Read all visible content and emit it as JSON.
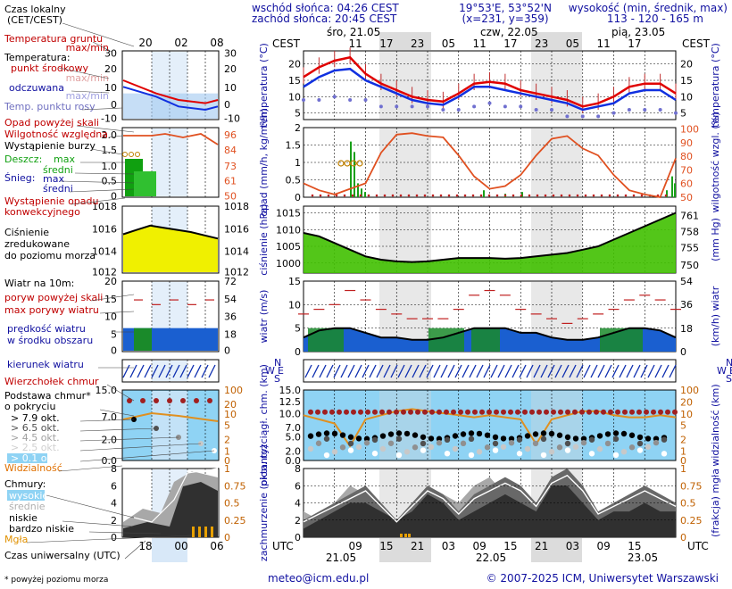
{
  "header": {
    "sunrise": "wschód słońca: 04:26 CEST",
    "sunset": "zachód słońca: 20:45 CEST",
    "coords": "19°53'E, 53°52'N",
    "grid": "(x=231, y=359)",
    "elev_title": "wysokość (min, średnik, max)",
    "elev_values": "113 - 120 - 165 m"
  },
  "legend": {
    "local_time": "Czas lokalny",
    "local_time_sub": "(CET/CEST)",
    "legend_hours": [
      "20",
      "02",
      "08"
    ],
    "utc_hours": [
      "18",
      "00",
      "06"
    ],
    "ground_temp": "Temperatura gruntu",
    "max_min": "max/min",
    "temperature": "Temperatura:",
    "mid_point": "punkt środkowy",
    "max_min2": "max/min",
    "perceived": "odczuwana",
    "max_min3": "max/min",
    "dew_point": "Temp. punktu rosy",
    "precip_above": "Opad powyżej skali",
    "rel_humidity": "Wilgotność względna",
    "storm": "Wystąpienie burzy",
    "rain_label": "Deszcz:",
    "snow_label": "Śnieg:",
    "max": "max",
    "mean": "średni",
    "precip_conv_1": "Wystąpienie opadu",
    "precip_conv_2": "konwekcyjnego",
    "pressure_1": "Ciśnienie",
    "pressure_2": "zredukowane",
    "pressure_3": "do poziomu morza",
    "wind_at": "Wiatr na 10m:",
    "gust_above": "poryw powyżej skali",
    "max_gust": "max porywy wiatru",
    "mean_speed_1": "prędkość wiatru",
    "mean_speed_2": "w środku obszaru",
    "wind_dir": "kierunek wiatru",
    "cloud_top": "Wierzchołek chmur",
    "cloud_base_1": "Podstawa chmur*",
    "cloud_base_2": "o pokryciu",
    "okt_79": "> 7.9 okt.",
    "okt_65": "> 6.5 okt.",
    "okt_45": "> 4.5 okt.",
    "okt_25": "> 2.5 okt.",
    "okt_01": "> 0.1 okt.",
    "visibility": "Widzialność",
    "clouds": "Chmury:",
    "high": "wysokie",
    "middle": "średnie",
    "low": "niskie",
    "very_low": "bardzo niskie",
    "fog": "Mgła",
    "utc_time": "Czas uniwersalny (UTC)",
    "footnote": "* powyżej poziomu morza"
  },
  "main": {
    "cest": "CEST",
    "utc": "UTC",
    "days": [
      "śro, 21.05",
      "czw, 22.05",
      "pią, 23.05"
    ],
    "utc_dates": [
      "21.05",
      "22.05",
      "23.05"
    ],
    "local_hours": [
      "11",
      "17",
      "23",
      "05",
      "11",
      "17",
      "23",
      "05",
      "11",
      "17"
    ],
    "utc_hours": [
      "09",
      "15",
      "21",
      "03",
      "09",
      "15",
      "21",
      "03",
      "09",
      "15"
    ]
  },
  "footer": {
    "email": "meteo@icm.edu.pl",
    "copyright": "© 2007-2025 ICM, Uniwersytet Warszawski"
  },
  "colors": {
    "temp_red": "#e00000",
    "perceived_blue": "#1030e0",
    "dew_purple": "#7070d0",
    "humidity_orange": "#e05020",
    "pressure_green": "#40c000",
    "pressure_yellow": "#f0f000",
    "wind_gust_red": "#c02020",
    "sky_blue": "#7ec8f0",
    "night_grey": "#dcdcdc",
    "label_blue": "#1010a0"
  },
  "chart_data": [
    {
      "type": "line",
      "title": "temperatura (°C)",
      "ylabel": "temperatura (°C)",
      "ylim": [
        3,
        24
      ],
      "yticks": [
        "5",
        "10",
        "15",
        "20"
      ],
      "x_hours": [
        0,
        3,
        6,
        9,
        12,
        15,
        18,
        21,
        24,
        27,
        30,
        33,
        36,
        39,
        42,
        45,
        48,
        51,
        54,
        57,
        60,
        63,
        66,
        69,
        72
      ],
      "series": [
        {
          "name": "punkt środkowy",
          "values": [
            16,
            19,
            21,
            22,
            17,
            14,
            12,
            10,
            9,
            8.5,
            11,
            14,
            14.5,
            14,
            12,
            11,
            10,
            9,
            7,
            8,
            10,
            13,
            14,
            14,
            11
          ]
        },
        {
          "name": "odczuwana",
          "values": [
            13,
            16,
            18,
            18.5,
            15,
            13,
            11,
            9,
            8,
            7.5,
            10,
            13,
            13,
            12,
            11,
            10,
            9,
            8,
            6,
            7,
            8,
            11,
            12,
            12,
            9
          ]
        },
        {
          "name": "Temp. punktu rosy",
          "values": [
            9,
            9,
            10,
            9,
            9,
            7,
            7,
            7,
            7,
            6,
            6,
            7,
            8,
            7,
            7,
            6,
            6,
            4,
            4,
            4,
            5,
            6,
            6,
            6,
            5
          ]
        }
      ]
    },
    {
      "type": "line",
      "title": "opad (mm/h, kg/m²/h)",
      "ylabel": "opad (mm/h, kg/m²/h)",
      "ylim": [
        0,
        2
      ],
      "yticks": [
        "0",
        "0.5",
        "1",
        "1.5",
        "2"
      ],
      "y2label": "wilgotność wzgl. (%)",
      "y2ticks": [
        "50",
        "60",
        "70",
        "80",
        "90",
        "100"
      ],
      "series": [
        {
          "name": "Wilgotność względna",
          "values": [
            60,
            55,
            52,
            56,
            60,
            82,
            95,
            96,
            94,
            93,
            80,
            65,
            56,
            58,
            66,
            80,
            92,
            94,
            85,
            80,
            66,
            55,
            52,
            50,
            78
          ]
        }
      ]
    },
    {
      "type": "area",
      "title": "ciśnienie (hPa)",
      "ylabel": "ciśnienie (hPa)",
      "ylim": [
        997,
        1017
      ],
      "yticks": [
        "1000",
        "1005",
        "1010",
        "1015"
      ],
      "y2label": "(mm Hg)",
      "y2ticks": [
        "750",
        "755",
        "758",
        "761"
      ],
      "series": [
        {
          "name": "Ciśnienie",
          "values": [
            1009,
            1008,
            1006,
            1004,
            1002,
            1001,
            1000.5,
            1000.3,
            1000.5,
            1001,
            1001.5,
            1001.5,
            1001.5,
            1001.3,
            1001.5,
            1002,
            1002.5,
            1003,
            1004,
            1005,
            1007,
            1009,
            1011,
            1013,
            1015
          ]
        }
      ]
    },
    {
      "type": "area",
      "title": "wiatr (m/s)",
      "ylabel": "wiatr (m/s)",
      "ylim": [
        0,
        15
      ],
      "yticks": [
        "0",
        "5",
        "10",
        "15"
      ],
      "y2label": "(km/h) wiatr",
      "y2ticks": [
        "0",
        "18",
        "36",
        "54"
      ],
      "series": [
        {
          "name": "prędkość wiatru",
          "values": [
            3,
            4.5,
            5,
            5,
            4,
            3,
            3,
            2.5,
            2.5,
            3,
            4,
            5,
            5,
            5,
            4,
            4,
            3,
            2.5,
            2.5,
            3,
            4,
            5,
            5,
            4.5,
            3
          ]
        },
        {
          "name": "max porywy wiatru",
          "values": [
            8,
            9,
            10,
            13,
            11,
            9,
            8,
            7,
            7,
            7,
            9,
            12,
            13,
            12,
            9,
            8,
            7,
            6,
            7,
            8,
            9,
            11,
            12,
            11,
            9
          ]
        }
      ]
    },
    {
      "type": "line",
      "title": "pion. rozciągł. chm. (km)",
      "ylabel": "pion. rozciągł. chm. (km)",
      "ylim": [
        0,
        15
      ],
      "yticks": [
        "0.0",
        "2.0",
        "5.0",
        "7.0",
        "10.0",
        "12.5",
        "15.0"
      ],
      "y2label": "widzialność (km)",
      "y2ticks": [
        "0",
        "1",
        "2",
        "5",
        "10",
        "20",
        "100"
      ],
      "series": [
        {
          "name": "Widzialność",
          "values": [
            22,
            20,
            18,
            7,
            20,
            22,
            24,
            25,
            24,
            23,
            22,
            21,
            22,
            21,
            20,
            8,
            20,
            22,
            24,
            24,
            22,
            21,
            21,
            22,
            21
          ]
        }
      ]
    },
    {
      "type": "area",
      "title": "zachmurzenie (oktanty)",
      "ylabel": "zachmurzenie (oktanty)",
      "ylim": [
        0,
        8
      ],
      "yticks": [
        "0",
        "2",
        "4",
        "6",
        "8"
      ],
      "y2label": "(frakcja) mgła",
      "y2ticks": [
        "0",
        "0.25",
        "0.5",
        "0.75",
        "1"
      ],
      "series": [
        {
          "name": "średnie",
          "values": [
            2,
            3,
            4,
            5,
            6,
            4,
            2,
            4,
            6,
            5,
            3,
            5,
            6,
            7,
            6,
            4,
            7,
            8,
            6,
            3,
            4,
            5,
            6,
            5,
            4
          ]
        },
        {
          "name": "niskie",
          "values": [
            1,
            2,
            3,
            4,
            4,
            3,
            2,
            3,
            5,
            4,
            2,
            3,
            4,
            5,
            4,
            3,
            6,
            6,
            4,
            2,
            3,
            3,
            4,
            3,
            3
          ]
        },
        {
          "name": "wysokie",
          "values": [
            3,
            2,
            4,
            6,
            5,
            4,
            2,
            3,
            6,
            5,
            4,
            6,
            7,
            5,
            3,
            3,
            6,
            7,
            5,
            2,
            4,
            3,
            6,
            5,
            4
          ]
        }
      ]
    }
  ]
}
